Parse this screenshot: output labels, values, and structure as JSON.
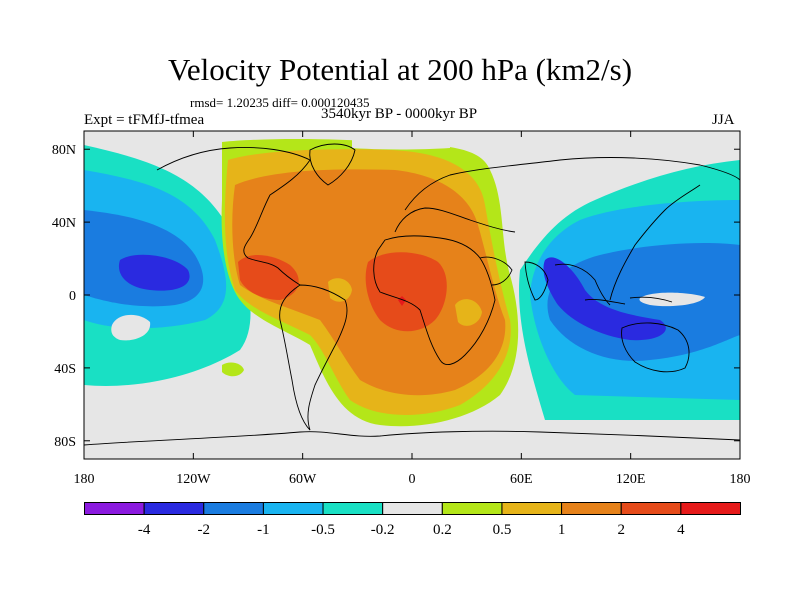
{
  "title": "Velocity Potential at 200 hPa (km2/s)",
  "stats": "rmsd= 1.20235 diff= 0.000120435",
  "left_label": "Expt = tFMfJ-tfmea",
  "center_label": "3540kyr BP - 0000kyr BP",
  "right_label": "JJA",
  "map": {
    "projection": "cylindrical equidistant",
    "lon_range": [
      -180,
      180
    ],
    "lat_range": [
      -90,
      90
    ],
    "lon_ticks": [
      {
        "value": -180,
        "label": "180"
      },
      {
        "value": -120,
        "label": "120W"
      },
      {
        "value": -60,
        "label": "60W"
      },
      {
        "value": 0,
        "label": "0"
      },
      {
        "value": 60,
        "label": "60E"
      },
      {
        "value": 120,
        "label": "120E"
      },
      {
        "value": 180,
        "label": "180"
      }
    ],
    "lat_ticks": [
      {
        "value": 80,
        "label": "80N"
      },
      {
        "value": 40,
        "label": "40N"
      },
      {
        "value": 0,
        "label": "0"
      },
      {
        "value": -40,
        "label": "40S"
      },
      {
        "value": -80,
        "label": "80S"
      }
    ]
  },
  "colorbar": {
    "colors": [
      "#8b1adf",
      "#2a2ae0",
      "#1a7ce0",
      "#19b4f0",
      "#19e0c4",
      "#e6e6e6",
      "#b4e619",
      "#e6b419",
      "#e6821a",
      "#e64b1a",
      "#e61a1a"
    ],
    "labels": [
      "-4",
      "-2",
      "-1",
      "-0.5",
      "-0.2",
      "0.2",
      "0.5",
      "1",
      "2",
      "4"
    ]
  }
}
